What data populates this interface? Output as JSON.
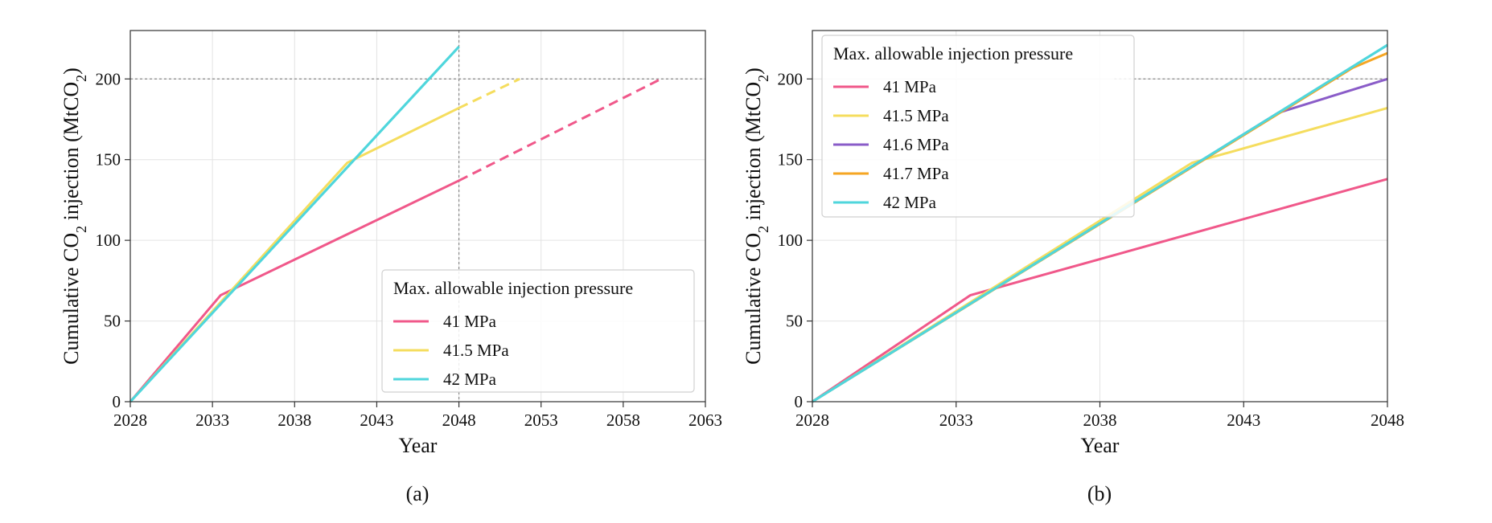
{
  "chart_data": [
    {
      "id": "a",
      "type": "line",
      "caption": "(a)",
      "xlabel": "Year",
      "ylabel_prefix": "Cumulative CO",
      "ylabel_sub": "2",
      "ylabel_mid": " injection (MtCO",
      "ylabel_sub2": "2",
      "ylabel_suffix": ")",
      "xlim": [
        2028,
        2063
      ],
      "ylim": [
        0,
        230
      ],
      "xticks": [
        2028,
        2033,
        2038,
        2043,
        2048,
        2053,
        2058,
        2063
      ],
      "yticks": [
        0,
        50,
        100,
        150,
        200
      ],
      "hline": 200,
      "vline": 2048,
      "legend_title": "Max. allowable injection pressure",
      "legend_position": "lower-right",
      "series": [
        {
          "name": "41 MPa",
          "color": "#f0588a",
          "solid": [
            [
              2028,
              0
            ],
            [
              2033.5,
              66
            ],
            [
              2048,
              137
            ]
          ],
          "dashed": [
            [
              2048,
              137
            ],
            [
              2060.3,
              200
            ]
          ]
        },
        {
          "name": "41.5 MPa",
          "color": "#f5dd5e",
          "solid": [
            [
              2028,
              0
            ],
            [
              2041.2,
              148
            ],
            [
              2048,
              182
            ]
          ],
          "dashed": [
            [
              2048,
              182
            ],
            [
              2051.7,
              200
            ]
          ]
        },
        {
          "name": "42 MPa",
          "color": "#4fd6dc",
          "solid": [
            [
              2028,
              0
            ],
            [
              2048,
              220
            ]
          ],
          "dashed": []
        }
      ]
    },
    {
      "id": "b",
      "type": "line",
      "caption": "(b)",
      "xlabel": "Year",
      "ylabel_prefix": "Cumulative CO",
      "ylabel_sub": "2",
      "ylabel_mid": " injection (MtCO",
      "ylabel_sub2": "2",
      "ylabel_suffix": ")",
      "xlim": [
        2028,
        2048
      ],
      "ylim": [
        0,
        230
      ],
      "xticks": [
        2028,
        2033,
        2038,
        2043,
        2048
      ],
      "yticks": [
        0,
        50,
        100,
        150,
        200
      ],
      "hline": 200,
      "legend_title": "Max. allowable injection pressure",
      "legend_position": "upper-left",
      "series": [
        {
          "name": "41 MPa",
          "color": "#f0588a",
          "solid": [
            [
              2028,
              0
            ],
            [
              2033.5,
              66
            ],
            [
              2048,
              138
            ]
          ]
        },
        {
          "name": "41.5 MPa",
          "color": "#f5dd5e",
          "solid": [
            [
              2028,
              0
            ],
            [
              2041.2,
              148
            ],
            [
              2048,
              182
            ]
          ]
        },
        {
          "name": "41.6 MPa",
          "color": "#8a5cc8",
          "solid": [
            [
              2028,
              0
            ],
            [
              2044.2,
              179
            ],
            [
              2048,
              200
            ]
          ]
        },
        {
          "name": "41.7 MPa",
          "color": "#f5a623",
          "solid": [
            [
              2028,
              0
            ],
            [
              2046.8,
              207
            ],
            [
              2048,
              216
            ]
          ]
        },
        {
          "name": "42 MPa",
          "color": "#4fd6dc",
          "solid": [
            [
              2028,
              0
            ],
            [
              2048,
              221
            ]
          ]
        }
      ]
    }
  ]
}
